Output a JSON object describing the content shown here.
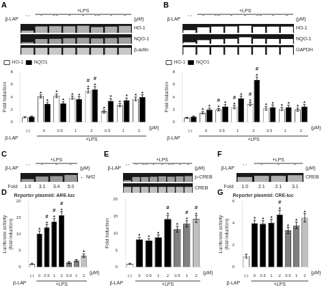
{
  "chart_data": [
    {
      "panel": "A",
      "type": "blot",
      "categories": [
        "(-)",
        "0",
        "0.5",
        "1",
        "2",
        "0.5",
        "1",
        "2"
      ],
      "group_label": "+LPS",
      "row_label": "β-LAP",
      "unit": "(μM)",
      "ylim": [
        0,
        1
      ],
      "tick_labels": "x",
      "grid": false,
      "series": [
        {
          "name": "HO-1",
          "color": "#b0b0b0",
          "values": [
            0.25,
            0.72,
            0.75,
            0.74,
            0.8,
            0.65,
            0.7,
            0.78
          ]
        },
        {
          "name": "NQO-1",
          "color": "#a0a0a0",
          "values": [
            0.15,
            0.5,
            0.52,
            0.58,
            0.62,
            0.56,
            0.6,
            0.65
          ]
        },
        {
          "name": "β-actin",
          "color": "#c8c8c8",
          "values": [
            0.72,
            0.72,
            0.72,
            0.72,
            0.72,
            0.72,
            0.72,
            0.72
          ]
        }
      ]
    },
    {
      "type": "bar",
      "categories": [
        "(-)",
        "0",
        "0.5",
        "1",
        "2",
        "0.5",
        "1",
        "2"
      ],
      "ylabel": "Fold Induction",
      "ylim": [
        0,
        8
      ],
      "yticks": [
        0,
        2,
        4,
        6,
        8
      ],
      "grid": false,
      "legend": "top",
      "group_label": "+LPS",
      "row_label": "β-LAP",
      "unit": "(μM)",
      "series": [
        {
          "name": "HO-1",
          "color": "white",
          "values": [
            0.8,
            4.1,
            4.2,
            3.9,
            5.0,
            1.7,
            2.7,
            3.7
          ],
          "errors": [
            0.08,
            0.25,
            0.3,
            0.25,
            0.35,
            0.25,
            0.25,
            0.3
          ],
          "annotations": [
            {
              "text": "*",
              "positions": [
                1,
                2,
                3,
                4,
                5,
                6,
                7
              ]
            },
            {
              "text": "#",
              "positions": [
                4
              ]
            }
          ]
        },
        {
          "name": "NQO1",
          "color": "black",
          "values": [
            0.9,
            2.9,
            3.0,
            3.7,
            5.2,
            3.4,
            3.5,
            4.0
          ],
          "errors": [
            0.08,
            0.25,
            0.25,
            0.35,
            0.45,
            0.35,
            0.35,
            0.35
          ],
          "annotations": [
            {
              "text": "*",
              "positions": [
                1,
                2,
                3,
                4,
                5,
                6,
                7
              ]
            },
            {
              "text": "#",
              "positions": [
                4
              ]
            }
          ]
        }
      ]
    },
    {
      "panel": "B",
      "type": "blot",
      "categories": [
        "(-)",
        "0",
        "0.5",
        "1",
        "2",
        "0.5",
        "1",
        "2"
      ],
      "group_label": "+LPS",
      "row_label": "β-LAP",
      "unit": "(μM)",
      "ylim": [
        0,
        1
      ],
      "tick_labels": "x",
      "grid": false,
      "series": [
        {
          "name": "HO-1",
          "color": "white",
          "values": [
            0.3,
            0.62,
            0.7,
            0.72,
            0.8,
            0.68,
            0.7,
            0.7
          ]
        },
        {
          "name": "NQO-1",
          "color": "white",
          "values": [
            0.15,
            0.38,
            0.48,
            0.52,
            0.68,
            0.52,
            0.5,
            0.5
          ]
        },
        {
          "name": "GAPDH",
          "color": "white",
          "values": [
            0.78,
            0.78,
            0.78,
            0.78,
            0.78,
            0.78,
            0.78,
            0.78
          ]
        }
      ]
    },
    {
      "type": "bar",
      "categories": [
        "(-)",
        "0",
        "0.5",
        "1",
        "2",
        "0.5",
        "1",
        "2"
      ],
      "ylabel": "Fold Induction",
      "ylim": [
        0,
        8
      ],
      "yticks": [
        0,
        2,
        4,
        6,
        8
      ],
      "grid": false,
      "legend": "top",
      "group_label": "+LPS",
      "row_label": "β-LAP",
      "unit": "(μM)",
      "series": [
        {
          "name": "HO-1",
          "color": "white",
          "values": [
            0.7,
            1.5,
            2.0,
            2.4,
            2.9,
            2.2,
            2.1,
            2.0
          ],
          "errors": [
            0.08,
            0.2,
            0.2,
            0.25,
            0.28,
            0.28,
            0.25,
            0.25
          ],
          "annotations": [
            {
              "text": "*",
              "positions": [
                1,
                2,
                3,
                4,
                5,
                6,
                7
              ]
            },
            {
              "text": "#",
              "positions": [
                2,
                3,
                4
              ]
            }
          ]
        },
        {
          "name": "NQO1",
          "color": "black",
          "values": [
            0.9,
            2.0,
            2.5,
            3.8,
            6.7,
            2.4,
            2.4,
            2.5
          ],
          "errors": [
            0.08,
            0.25,
            0.3,
            0.35,
            0.45,
            0.35,
            0.3,
            0.3
          ],
          "annotations": [
            {
              "text": "*",
              "positions": [
                1,
                2,
                3,
                4,
                5,
                6,
                7
              ]
            },
            {
              "text": "#",
              "positions": [
                4
              ]
            }
          ]
        }
      ]
    },
    {
      "panel": "C",
      "type": "blot",
      "categories": [
        "(-)",
        "0",
        "1",
        "2"
      ],
      "group_label": "+LPS",
      "row_label": "β-LAP",
      "unit": "(μM)",
      "ylim": [
        0,
        1
      ],
      "tick_labels": "x",
      "grid": false,
      "fold_title": "Fold:",
      "fold_labels": [
        "1.0",
        "3.1",
        "3.4",
        "5.0"
      ],
      "series": [
        {
          "name": "← Nrf2",
          "color": "#989898",
          "values": [
            0.32,
            0.6,
            0.65,
            0.78
          ]
        }
      ]
    },
    {
      "panel": "D",
      "type": "bar",
      "title": "Reporter plasmid: ARE-luc",
      "categories": [
        "(-)",
        "0",
        "0.5",
        "1",
        "2",
        "0.5",
        "1",
        "2"
      ],
      "ylabel": "Luciferase activity\n(fold induction)",
      "ylim": [
        0,
        20
      ],
      "yticks": [
        0,
        5,
        10,
        15,
        20
      ],
      "grid": false,
      "group_label": "+LPS",
      "row_label": "β-LAP",
      "unit": "(μM)",
      "values": [
        1.0,
        10.2,
        12.1,
        13.8,
        15.8,
        1.4,
        2.0,
        3.5
      ],
      "errors": [
        0.2,
        0.8,
        0.85,
        0.95,
        1.05,
        0.3,
        0.35,
        0.55
      ],
      "colors": [
        "white",
        "black",
        "black",
        "black",
        "black",
        "#808080",
        "#808080",
        "#c0c0c0"
      ],
      "annotations": [
        {
          "text": "*",
          "positions": [
            1,
            2,
            3,
            4,
            7
          ]
        },
        {
          "text": "#",
          "positions": [
            2,
            3,
            4
          ]
        }
      ]
    },
    {
      "panel": "E",
      "type": "blot",
      "categories": [
        "(-)",
        "0",
        "0.5",
        "1",
        "2",
        "0.5",
        "1",
        "2"
      ],
      "group_label": "+LPS",
      "row_label": "β-LAP",
      "unit": "(μM)",
      "ylim": [
        0,
        1
      ],
      "tick_labels": "x",
      "grid": false,
      "series": [
        {
          "name": "p-CREB",
          "color": "#a0a0a0",
          "values": [
            0.18,
            0.55,
            0.55,
            0.58,
            0.62,
            0.58,
            0.62,
            0.65
          ]
        },
        {
          "name": "CREB",
          "color": "#c0c0c0",
          "values": [
            0.62,
            0.62,
            0.62,
            0.62,
            0.62,
            0.62,
            0.62,
            0.62
          ]
        }
      ]
    },
    {
      "type": "bar",
      "categories": [
        "(-)",
        "0",
        "0.5",
        "1",
        "2",
        "0.5",
        "1",
        "2"
      ],
      "ylabel": "Fold Induction",
      "ylim": [
        0,
        20
      ],
      "yticks": [
        0,
        5,
        10,
        15,
        20
      ],
      "grid": false,
      "group_label": "+LPS",
      "row_label": "β-LAP",
      "unit": "(μM)",
      "values": [
        1.0,
        8.2,
        7.8,
        8.8,
        14.2,
        11.2,
        12.8,
        14.2
      ],
      "errors": [
        0.15,
        0.6,
        0.6,
        0.7,
        1.0,
        0.85,
        0.9,
        1.0
      ],
      "colors": [
        "white",
        "black",
        "black",
        "black",
        "black",
        "#808080",
        "#808080",
        "#c0c0c0"
      ],
      "annotations": [
        {
          "text": "*",
          "positions": [
            1,
            2,
            3,
            4,
            5,
            6,
            7
          ]
        },
        {
          "text": "#",
          "positions": [
            4,
            6,
            7
          ]
        }
      ]
    },
    {
      "panel": "F",
      "type": "blot",
      "categories": [
        "(-)",
        "0",
        "1",
        "2"
      ],
      "group_label": "+LPS",
      "row_label": "β-LAP",
      "unit": "(μM)",
      "ylim": [
        0,
        1
      ],
      "tick_labels": "x",
      "grid": false,
      "fold_title": "Fold:",
      "fold_labels": [
        "1.0",
        "2.1",
        "2.1",
        "3.1"
      ],
      "series": [
        {
          "name": "CREB",
          "color": "#b0b0b0",
          "values": [
            0.55,
            0.68,
            0.68,
            0.75
          ]
        }
      ]
    },
    {
      "panel": "G",
      "type": "bar",
      "title": "Reporter plasmid: CRE-luc",
      "categories": [
        "(-)",
        "0",
        "0.5",
        "1",
        "2",
        "0.5",
        "1",
        "2"
      ],
      "ylabel": "Luciferase activity\n(fold induction)",
      "ylim": [
        0,
        6
      ],
      "yticks": [
        0,
        2,
        4,
        6
      ],
      "grid": false,
      "group_label": "+LPS",
      "row_label": "β-LAP",
      "unit": "(μM)",
      "values": [
        1.0,
        4.0,
        3.95,
        4.05,
        4.8,
        3.35,
        3.8,
        4.5
      ],
      "errors": [
        0.18,
        0.28,
        0.28,
        0.3,
        0.38,
        0.28,
        0.3,
        0.38
      ],
      "colors": [
        "white",
        "black",
        "black",
        "black",
        "black",
        "#808080",
        "#808080",
        "#c0c0c0"
      ],
      "annotations": [
        {
          "text": "*",
          "positions": [
            1,
            2,
            3,
            4,
            5,
            6,
            7
          ]
        },
        {
          "text": "#",
          "positions": [
            4
          ]
        }
      ]
    }
  ]
}
